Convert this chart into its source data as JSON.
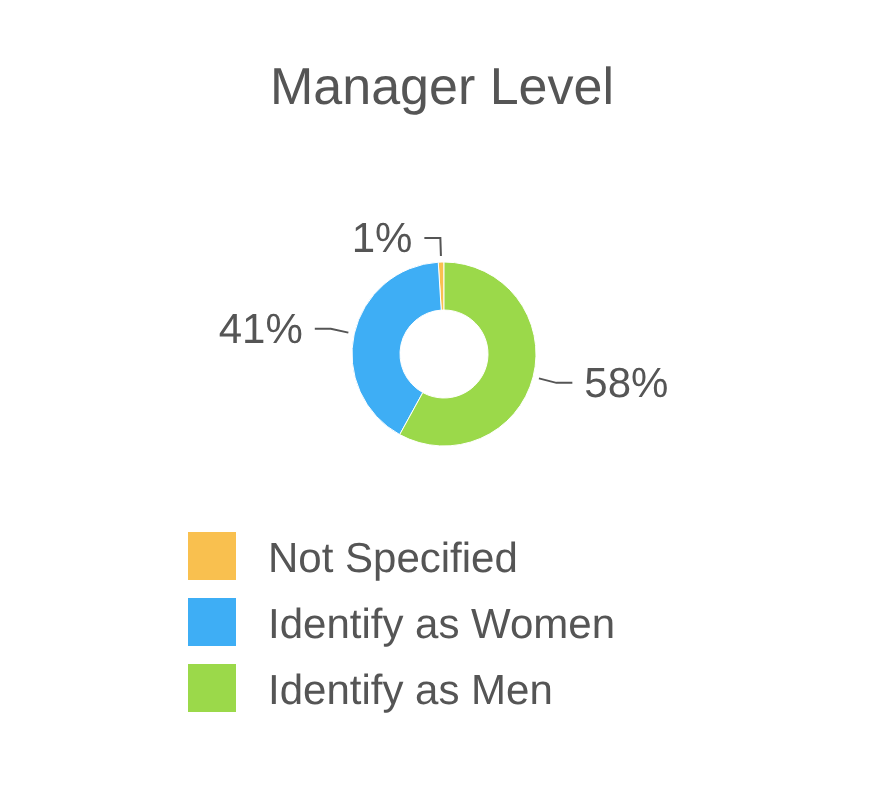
{
  "chart_data": {
    "type": "donut",
    "title": "Manager Level",
    "categories": [
      "Not Specified",
      "Identify as Women",
      "Identify as Men"
    ],
    "values": [
      1,
      41,
      58
    ],
    "colors": [
      "#f9c04f",
      "#3eaef5",
      "#9bd94a"
    ],
    "value_labels": [
      "1%",
      "41%",
      "58%"
    ],
    "legend": "bottom"
  }
}
